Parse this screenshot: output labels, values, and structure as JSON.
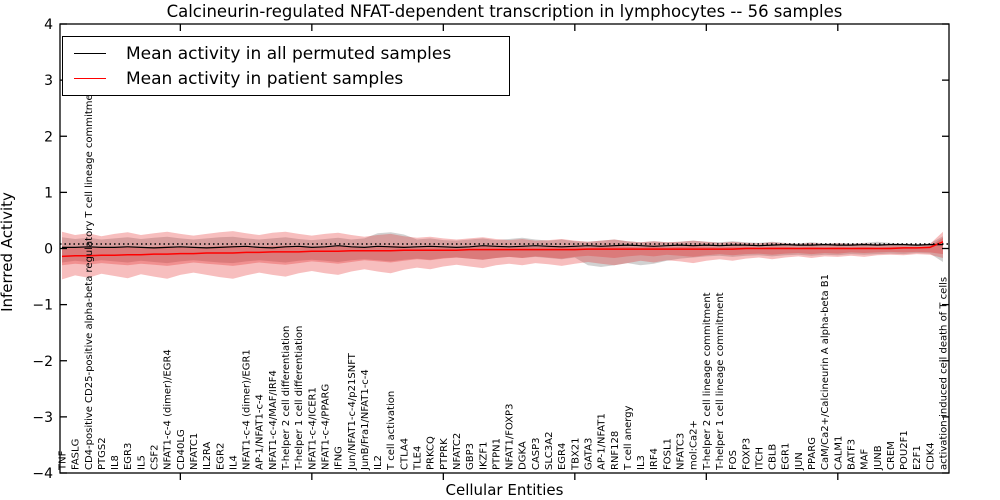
{
  "figure": {
    "title": "Calcineurin-regulated NFAT-dependent transcription in lymphocytes -- 56 samples",
    "xlabel": "Cellular Entities",
    "ylabel": "Inferred Activity"
  },
  "legend": {
    "entries": [
      {
        "label": "Mean activity in all permuted samples",
        "color": "#000000"
      },
      {
        "label": "Mean activity in patient samples",
        "color": "#ff0000"
      }
    ]
  },
  "colors": {
    "patient_line": "#ff0000",
    "permuted_line": "#000000",
    "patient_band": "rgba(230,40,40,0.30)",
    "permuted_band": "rgba(140,140,140,0.40)",
    "axis": "#000000"
  },
  "chart_data": {
    "type": "line",
    "title": "Calcineurin-regulated NFAT-dependent transcription in lymphocytes -- 56 samples",
    "xlabel": "Cellular Entities",
    "ylabel": "Inferred Activity",
    "ylim": [
      -4,
      4
    ],
    "yticks": [
      4,
      3,
      2,
      1,
      0,
      -1,
      -2,
      -3,
      -4
    ],
    "xtick_major_indices": [
      9,
      19,
      29,
      39,
      49,
      59
    ],
    "grid": false,
    "legend_position": "upper left",
    "categories": [
      "TNF",
      "FASLG",
      "CD4-positive CD25-positive alpha-beta regulatory T cell lineage commitment",
      "PTGS2",
      "IL8",
      "EGR3",
      "IL5",
      "CSF2",
      "NFAT1-c-4 (dimer)/EGR4",
      "CD40LG",
      "NFATC1",
      "IL2RA",
      "EGR2",
      "IL4",
      "NFAT1-c-4 (dimer)/EGR1",
      "AP-1/NFAT1-c-4",
      "NFAT1-c-4/MAF/IRF4",
      "T-helper 2 cell differentiation",
      "T-helper 1 cell differentiation",
      "NFAT1-c-4/ICER1",
      "NFAT1-c-4/PPARG",
      "IFNG",
      "Jun/NFAT1-c-4/p21SNFT",
      "JunB/Fra1/NFAT1-c-4",
      "IL2",
      "T cell activation",
      "CTLA4",
      "TLE4",
      "PRKCQ",
      "PTPRK",
      "NFATC2",
      "GBP3",
      "IKZF1",
      "PTPN1",
      "NFAT1/FOXP3",
      "DGKA",
      "CASP3",
      "SLC3A2",
      "EGR4",
      "TBX21",
      "GATA3",
      "AP-1/NFAT1",
      "RNF128",
      "T cell anergy",
      "IL3",
      "IRF4",
      "FOSL1",
      "NFATC3",
      "mol:Ca2+",
      "T-helper 2 cell lineage commitment",
      "T-helper 1 cell lineage commitment",
      "FOS",
      "FOXP3",
      "ITCH",
      "CBLB",
      "EGR1",
      "JUN",
      "PPARG",
      "CaM/Ca2+/Calcineurin A alpha-beta B1",
      "CALM1",
      "BATF3",
      "MAF",
      "JUNB",
      "CREM",
      "POU2F1",
      "E2F1",
      "CDK4",
      "activation-induced cell death of T cells"
    ],
    "series": [
      {
        "name": "Mean activity in all permuted samples",
        "color": "#000000",
        "style": "solid",
        "width": 1.2,
        "values": [
          0.02,
          0.02,
          0.03,
          0.02,
          0.02,
          0.03,
          0.02,
          0.01,
          0.02,
          0.03,
          0.02,
          0.01,
          0.02,
          0.03,
          0.04,
          0.02,
          0.01,
          0.03,
          0.04,
          0.02,
          0.03,
          0.05,
          0.03,
          0.02,
          0.04,
          0.03,
          0.02,
          0.03,
          0.04,
          0.03,
          0.02,
          0.03,
          0.05,
          0.04,
          0.03,
          0.04,
          0.05,
          0.04,
          0.03,
          0.04,
          0.05,
          0.04,
          0.05,
          0.06,
          0.05,
          0.04,
          0.05,
          0.06,
          0.05,
          0.06,
          0.05,
          0.06,
          0.06,
          0.05,
          0.06,
          0.07,
          0.06,
          0.06,
          0.07,
          0.06,
          0.06,
          0.07,
          0.06,
          0.07,
          0.07,
          0.06,
          0.07,
          0.07
        ]
      },
      {
        "name": "Mean activity in patient samples",
        "color": "#ff0000",
        "style": "solid",
        "width": 1.5,
        "values": [
          -0.14,
          -0.13,
          -0.13,
          -0.12,
          -0.12,
          -0.11,
          -0.11,
          -0.1,
          -0.1,
          -0.09,
          -0.09,
          -0.08,
          -0.08,
          -0.08,
          -0.07,
          -0.07,
          -0.06,
          -0.06,
          -0.06,
          -0.05,
          -0.05,
          -0.05,
          -0.04,
          -0.04,
          -0.04,
          -0.04,
          -0.03,
          -0.03,
          -0.03,
          -0.03,
          -0.03,
          -0.02,
          -0.02,
          -0.02,
          -0.02,
          -0.02,
          -0.02,
          -0.02,
          -0.02,
          -0.02,
          -0.01,
          -0.01,
          -0.01,
          -0.01,
          -0.01,
          -0.01,
          -0.01,
          -0.01,
          -0.01,
          -0.01,
          -0.01,
          -0.01,
          0,
          0,
          0,
          0,
          0,
          0,
          0,
          0,
          0,
          0,
          0,
          0,
          0.01,
          0.01,
          0.02,
          0.12
        ]
      },
      {
        "name": "reference-dotted",
        "color": "#000000",
        "style": "dotted",
        "width": 1.5,
        "constant": 0.08
      }
    ],
    "bands": [
      {
        "name": "permuted-range",
        "color": "rgba(140,140,140,0.40)",
        "upper": [
          0.2,
          0.17,
          0.19,
          0.16,
          0.18,
          0.2,
          0.17,
          0.19,
          0.21,
          0.18,
          0.16,
          0.18,
          0.2,
          0.21,
          0.18,
          0.16,
          0.18,
          0.2,
          0.17,
          0.15,
          0.17,
          0.19,
          0.16,
          0.18,
          0.27,
          0.29,
          0.25,
          0.16,
          0.18,
          0.15,
          0.14,
          0.16,
          0.18,
          0.15,
          0.17,
          0.19,
          0.16,
          0.14,
          0.16,
          0.13,
          0.12,
          0.14,
          0.16,
          0.13,
          0.11,
          0.13,
          0.11,
          0.12,
          0.14,
          0.12,
          0.11,
          0.13,
          0.11,
          0.1,
          0.12,
          0.1,
          0.09,
          0.11,
          0.09,
          0.1,
          0.09,
          0.1,
          0.12,
          0.1,
          0.09,
          0.08,
          0.09,
          0.22
        ],
        "lower": [
          -0.25,
          -0.22,
          -0.24,
          -0.21,
          -0.23,
          -0.25,
          -0.22,
          -0.24,
          -0.26,
          -0.23,
          -0.21,
          -0.23,
          -0.25,
          -0.26,
          -0.23,
          -0.21,
          -0.23,
          -0.25,
          -0.22,
          -0.2,
          -0.22,
          -0.24,
          -0.21,
          -0.19,
          -0.21,
          -0.23,
          -0.2,
          -0.18,
          -0.2,
          -0.17,
          -0.16,
          -0.18,
          -0.2,
          -0.17,
          -0.15,
          -0.17,
          -0.15,
          -0.17,
          -0.19,
          -0.16,
          -0.3,
          -0.33,
          -0.3,
          -0.26,
          -0.3,
          -0.27,
          -0.22,
          -0.18,
          -0.16,
          -0.14,
          -0.13,
          -0.15,
          -0.13,
          -0.12,
          -0.14,
          -0.12,
          -0.11,
          -0.13,
          -0.11,
          -0.12,
          -0.1,
          -0.11,
          -0.1,
          -0.09,
          -0.1,
          -0.08,
          -0.09,
          -0.24
        ]
      },
      {
        "name": "patient-range-outer",
        "color": "rgba(230,40,40,0.30)",
        "upper": [
          0.3,
          0.24,
          0.27,
          0.22,
          0.26,
          0.29,
          0.24,
          0.27,
          0.3,
          0.26,
          0.23,
          0.26,
          0.29,
          0.31,
          0.27,
          0.24,
          0.28,
          0.3,
          0.26,
          0.23,
          0.26,
          0.28,
          0.24,
          0.21,
          0.24,
          0.26,
          0.22,
          0.19,
          0.21,
          0.18,
          0.16,
          0.18,
          0.2,
          0.17,
          0.15,
          0.17,
          0.14,
          0.15,
          0.17,
          0.14,
          0.12,
          0.14,
          0.16,
          0.13,
          0.11,
          0.13,
          0.11,
          0.12,
          0.14,
          0.12,
          0.1,
          0.12,
          0.1,
          0.09,
          0.11,
          0.09,
          0.08,
          0.1,
          0.08,
          0.09,
          0.08,
          0.09,
          0.08,
          0.07,
          0.08,
          0.07,
          0.08,
          0.3
        ],
        "lower": [
          -0.55,
          -0.48,
          -0.52,
          -0.45,
          -0.49,
          -0.53,
          -0.46,
          -0.5,
          -0.54,
          -0.47,
          -0.43,
          -0.47,
          -0.51,
          -0.54,
          -0.48,
          -0.43,
          -0.47,
          -0.5,
          -0.44,
          -0.4,
          -0.44,
          -0.47,
          -0.41,
          -0.37,
          -0.41,
          -0.44,
          -0.38,
          -0.34,
          -0.37,
          -0.32,
          -0.29,
          -0.32,
          -0.35,
          -0.3,
          -0.27,
          -0.3,
          -0.26,
          -0.28,
          -0.31,
          -0.27,
          -0.24,
          -0.27,
          -0.3,
          -0.26,
          -0.22,
          -0.25,
          -0.21,
          -0.23,
          -0.26,
          -0.22,
          -0.19,
          -0.22,
          -0.18,
          -0.16,
          -0.19,
          -0.16,
          -0.14,
          -0.17,
          -0.14,
          -0.15,
          -0.13,
          -0.15,
          -0.12,
          -0.11,
          -0.12,
          -0.1,
          -0.11,
          -0.17
        ]
      },
      {
        "name": "patient-range-inner",
        "color": "rgba(230,40,40,0.30)",
        "upper": [
          0.04,
          0.02,
          0.03,
          0.02,
          0.03,
          0.04,
          0.02,
          0.03,
          0.04,
          0.03,
          0.02,
          0.03,
          0.04,
          0.05,
          0.04,
          0.03,
          0.04,
          0.05,
          0.04,
          0.03,
          0.04,
          0.05,
          0.04,
          0.03,
          0.04,
          0.05,
          0.04,
          0.03,
          0.04,
          0.03,
          0.02,
          0.03,
          0.04,
          0.03,
          0.02,
          0.03,
          0.02,
          0.03,
          0.04,
          0.03,
          0.02,
          0.03,
          0.04,
          0.03,
          0.02,
          0.03,
          0.02,
          0.03,
          0.04,
          0.03,
          0.02,
          0.03,
          0.03,
          0.02,
          0.03,
          0.03,
          0.02,
          0.03,
          0.02,
          0.03,
          0.02,
          0.03,
          0.02,
          0.03,
          0.03,
          0.02,
          0.04,
          0.19
        ],
        "lower": [
          -0.3,
          -0.27,
          -0.29,
          -0.26,
          -0.28,
          -0.3,
          -0.27,
          -0.29,
          -0.31,
          -0.28,
          -0.25,
          -0.27,
          -0.29,
          -0.31,
          -0.28,
          -0.25,
          -0.27,
          -0.29,
          -0.26,
          -0.23,
          -0.25,
          -0.27,
          -0.24,
          -0.21,
          -0.23,
          -0.25,
          -0.22,
          -0.19,
          -0.21,
          -0.18,
          -0.16,
          -0.18,
          -0.2,
          -0.17,
          -0.15,
          -0.17,
          -0.14,
          -0.16,
          -0.18,
          -0.15,
          -0.13,
          -0.15,
          -0.17,
          -0.14,
          -0.12,
          -0.14,
          -0.11,
          -0.13,
          -0.15,
          -0.12,
          -0.1,
          -0.12,
          -0.1,
          -0.09,
          -0.11,
          -0.09,
          -0.08,
          -0.1,
          -0.08,
          -0.09,
          -0.07,
          -0.08,
          -0.07,
          -0.06,
          -0.07,
          -0.06,
          -0.07,
          -0.1
        ]
      }
    ]
  }
}
